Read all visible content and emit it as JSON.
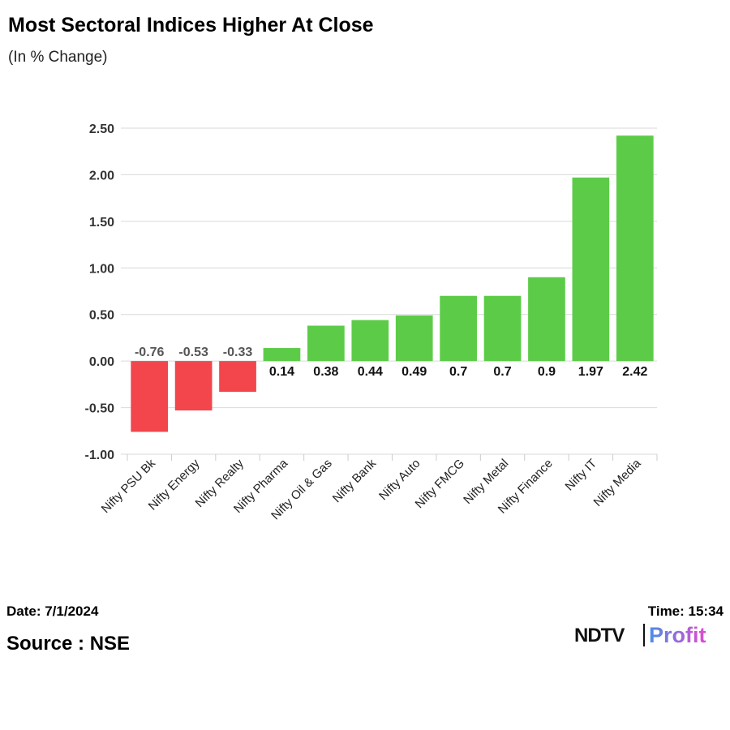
{
  "header": {
    "title": "Most Sectoral Indices Higher At Close",
    "subtitle": "(In % Change)"
  },
  "chart_data": {
    "type": "bar",
    "categories": [
      "Nifty PSU Bk",
      "Nifty Energy",
      "Nifty Realty",
      "Nifty Pharma",
      "Nifty Oil & Gas",
      "Nifty Bank",
      "Nifty Auto",
      "Nifty FMCG",
      "Nifty Metal",
      "Nifty Finance",
      "Nifty IT",
      "Nifty Media"
    ],
    "values": [
      -0.76,
      -0.53,
      -0.33,
      0.14,
      0.38,
      0.44,
      0.49,
      0.7,
      0.7,
      0.9,
      1.97,
      2.42
    ],
    "data_labels": [
      "-0.76",
      "-0.53",
      "-0.33",
      "0.14",
      "0.38",
      "0.44",
      "0.49",
      "0.7",
      "0.7",
      "0.9",
      "1.97",
      "2.42"
    ],
    "y_ticks": [
      "2.50",
      "2.00",
      "1.50",
      "1.00",
      "0.50",
      "0.00",
      "-0.50",
      "-1.00"
    ],
    "ylim": [
      -1.0,
      2.5
    ],
    "grid": true,
    "colors": {
      "positive": "#5ccc48",
      "negative": "#f2454c"
    }
  },
  "footer": {
    "date": "Date: 7/1/2024",
    "time": "Time: 15:34",
    "source": "Source : NSE",
    "logo_text": "NDTV Profit",
    "logo_colors": {
      "ndtv": "#111111",
      "profit_start": "#4a8ee8",
      "profit_end": "#e04ad0"
    }
  }
}
